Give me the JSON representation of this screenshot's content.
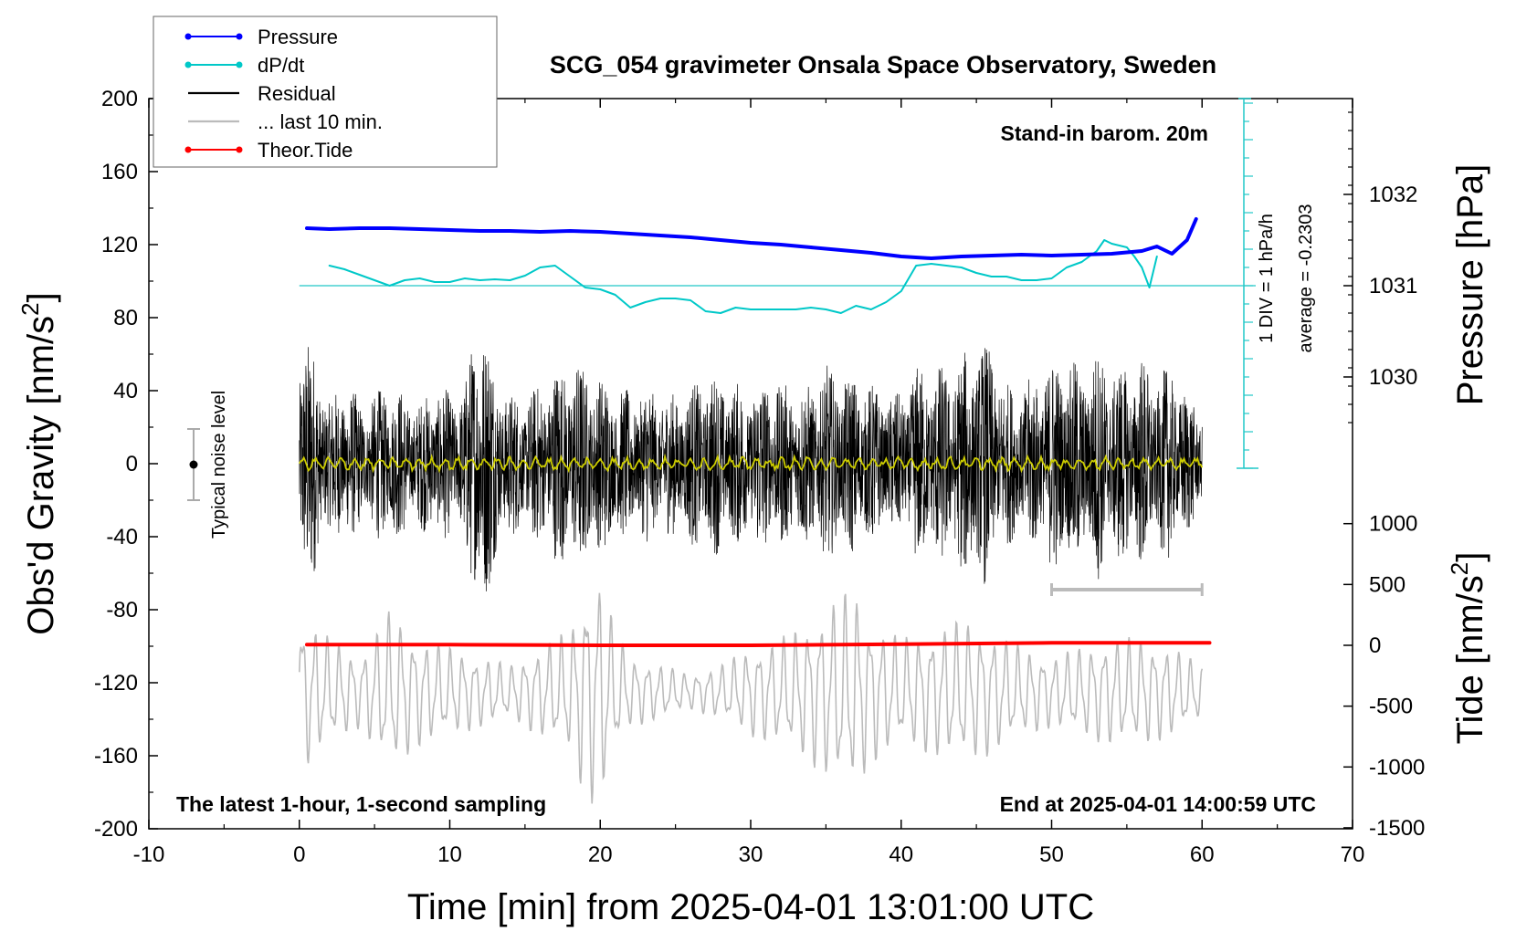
{
  "chart_data": {
    "type": "line",
    "title": "SCG_054 gravimeter Onsala Space Observatory, Sweden",
    "xlabel": "Time [min] from 2025-04-01 13:01:00 UTC",
    "xlim": [
      -10,
      70
    ],
    "xticks": [
      -10,
      0,
      10,
      20,
      30,
      40,
      50,
      60,
      70
    ],
    "left_axis": {
      "label": "Obs'd Gravity [nm/s",
      "label_sup": "2",
      "label_end": "]",
      "ylim": [
        -200,
        200
      ],
      "ticks": [
        -200,
        -160,
        -120,
        -80,
        -40,
        0,
        40,
        80,
        120,
        160,
        200
      ]
    },
    "pressure_axis": {
      "label": "Pressure [hPa]",
      "ticks": [
        1030,
        1031,
        1032
      ],
      "note": "Stand-in barom. 20m"
    },
    "tide_axis": {
      "label": "Tide [nm/s",
      "label_sup": "2",
      "label_end": "]",
      "ticks": [
        -1500,
        -1000,
        -500,
        0,
        500,
        1000
      ]
    },
    "dpdt_scale": {
      "div_label": "1 DIV = 1 hPa/h",
      "average_label": "average = -0.2303"
    },
    "noise_label": "Typical noise level",
    "bottom_left_note": "The latest 1-hour, 1-second sampling",
    "bottom_right_note": "End at 2025-04-01 14:00:59 UTC",
    "last10_bar": [
      50,
      60
    ],
    "legend": [
      {
        "name": "Pressure",
        "color": "#0000ff",
        "marker": true
      },
      {
        "name": "dP/dt",
        "color": "#00c8c8",
        "marker": true
      },
      {
        "name": "Residual",
        "color": "#000000",
        "marker": false
      },
      {
        "name": "... last 10 min.",
        "color": "#bbbbbb",
        "marker": false
      },
      {
        "name": "Theor.Tide",
        "color": "#ff0000",
        "marker": true
      }
    ],
    "series": [
      {
        "name": "Pressure",
        "color": "#0000ff",
        "axis": "pressure",
        "x": [
          0.5,
          2,
          4,
          6,
          8,
          10,
          12,
          14,
          16,
          18,
          20,
          22,
          24,
          26,
          28,
          30,
          32,
          34,
          36,
          38,
          40,
          42,
          44,
          46,
          48,
          50,
          52,
          54,
          56,
          57,
          58,
          59,
          59.6
        ],
        "y": [
          1031.63,
          1031.62,
          1031.63,
          1031.63,
          1031.62,
          1031.61,
          1031.6,
          1031.6,
          1031.59,
          1031.6,
          1031.59,
          1031.57,
          1031.55,
          1031.53,
          1031.5,
          1031.47,
          1031.45,
          1031.42,
          1031.39,
          1031.36,
          1031.32,
          1031.3,
          1031.32,
          1031.33,
          1031.34,
          1031.33,
          1031.34,
          1031.35,
          1031.38,
          1031.43,
          1031.35,
          1031.5,
          1031.73
        ]
      },
      {
        "name": "dP/dt",
        "color": "#00c8c8",
        "axis": "dpdt",
        "x": [
          2,
          3,
          4,
          5,
          6,
          7,
          8,
          9,
          10,
          11,
          12,
          13,
          14,
          15,
          16,
          17,
          18,
          19,
          20,
          21,
          22,
          23,
          24,
          25,
          26,
          27,
          28,
          29,
          30,
          31,
          32,
          33,
          34,
          35,
          36,
          37,
          38,
          39,
          40,
          41,
          42,
          43,
          44,
          45,
          46,
          47,
          48,
          49,
          50,
          51,
          52,
          53,
          53.5,
          54,
          55,
          55.5,
          56,
          56.5,
          57
        ],
        "y": [
          1.1,
          0.9,
          0.6,
          0.3,
          0.0,
          0.3,
          0.4,
          0.2,
          0.2,
          0.4,
          0.3,
          0.35,
          0.3,
          0.55,
          1.0,
          1.1,
          0.5,
          -0.1,
          -0.2,
          -0.5,
          -1.2,
          -0.9,
          -0.7,
          -0.7,
          -0.8,
          -1.4,
          -1.5,
          -1.2,
          -1.3,
          -1.3,
          -1.3,
          -1.3,
          -1.2,
          -1.3,
          -1.5,
          -1.1,
          -1.3,
          -0.9,
          -0.3,
          1.1,
          1.2,
          1.1,
          1.0,
          0.7,
          0.5,
          0.5,
          0.3,
          0.3,
          0.4,
          1.0,
          1.3,
          1.9,
          2.5,
          2.3,
          2.1,
          1.6,
          1.0,
          -0.1,
          1.6
        ]
      },
      {
        "name": "Theor.Tide",
        "color": "#ff0000",
        "axis": "tide",
        "x": [
          0.5,
          10,
          20,
          30,
          40,
          50,
          60.5
        ],
        "y": [
          5,
          5,
          0,
          0,
          10,
          20,
          20
        ]
      }
    ],
    "residual_envelope": {
      "name": "Residual",
      "color": "#000000",
      "x": [
        0,
        1,
        2,
        3,
        4,
        5,
        6,
        7,
        8,
        9,
        10,
        11,
        12,
        13,
        14,
        15,
        16,
        17,
        18,
        19,
        20,
        21,
        22,
        23,
        24,
        25,
        26,
        27,
        28,
        29,
        30,
        31,
        32,
        33,
        34,
        35,
        36,
        37,
        38,
        39,
        40,
        41,
        42,
        43,
        44,
        45,
        46,
        47,
        48,
        49,
        50,
        51,
        52,
        53,
        54,
        55,
        56,
        57,
        58,
        59,
        60
      ],
      "amplitude": [
        75,
        65,
        35,
        50,
        35,
        40,
        45,
        40,
        35,
        45,
        40,
        45,
        95,
        55,
        40,
        40,
        45,
        55,
        60,
        55,
        50,
        45,
        40,
        45,
        40,
        40,
        45,
        50,
        50,
        45,
        45,
        50,
        45,
        45,
        45,
        55,
        50,
        50,
        45,
        40,
        40,
        55,
        55,
        55,
        60,
        70,
        65,
        45,
        45,
        50,
        60,
        60,
        55,
        65,
        55,
        55,
        60,
        50,
        55,
        40,
        30
      ]
    },
    "residual_mean": {
      "name": "Residual mean",
      "color": "#cccc00",
      "value": 0
    },
    "last10_trace": {
      "name": "... last 10 min.",
      "color": "#bbbbbb",
      "center": -125,
      "x": [
        0,
        2,
        4,
        6,
        8,
        10,
        12,
        14,
        16,
        18,
        19,
        20,
        21,
        22,
        24,
        26,
        28,
        30,
        32,
        34,
        36,
        37,
        38,
        40,
        42,
        44,
        46,
        48,
        50,
        52,
        54,
        56,
        58,
        60
      ],
      "amplitude": [
        45,
        30,
        20,
        45,
        30,
        25,
        20,
        15,
        25,
        35,
        60,
        65,
        35,
        20,
        15,
        10,
        15,
        25,
        30,
        40,
        55,
        55,
        40,
        30,
        35,
        40,
        35,
        25,
        20,
        25,
        30,
        30,
        25,
        15
      ]
    }
  }
}
